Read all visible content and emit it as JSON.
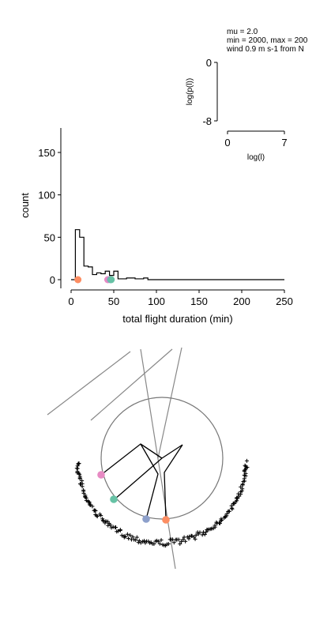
{
  "annotation": {
    "line1": "mu = 2.0",
    "line2": "min = 2000, max = 200",
    "line3": "wind 0.9 m s-1 from N"
  },
  "chart_data": [
    {
      "type": "histogram",
      "xlabel": "total flight duration (min)",
      "ylabel": "count",
      "xlim": [
        0,
        250
      ],
      "ylim": [
        -10,
        180
      ],
      "xticks": [
        0,
        50,
        100,
        150,
        200,
        250
      ],
      "yticks": [
        0,
        50,
        100,
        150
      ],
      "bin_width": 5,
      "bins": [
        {
          "x0": 0,
          "x1": 5,
          "count": 0
        },
        {
          "x0": 5,
          "x1": 10,
          "count": 59
        },
        {
          "x0": 10,
          "x1": 15,
          "count": 50
        },
        {
          "x0": 15,
          "x1": 20,
          "count": 16
        },
        {
          "x0": 20,
          "x1": 25,
          "count": 15
        },
        {
          "x0": 25,
          "x1": 30,
          "count": 6
        },
        {
          "x0": 30,
          "x1": 35,
          "count": 8
        },
        {
          "x0": 35,
          "x1": 40,
          "count": 7
        },
        {
          "x0": 40,
          "x1": 45,
          "count": 10
        },
        {
          "x0": 45,
          "x1": 50,
          "count": 5
        },
        {
          "x0": 50,
          "x1": 55,
          "count": 10
        },
        {
          "x0": 55,
          "x1": 60,
          "count": 1
        },
        {
          "x0": 60,
          "x1": 65,
          "count": 1
        },
        {
          "x0": 65,
          "x1": 70,
          "count": 2
        },
        {
          "x0": 70,
          "x1": 75,
          "count": 2
        },
        {
          "x0": 75,
          "x1": 80,
          "count": 1
        },
        {
          "x0": 80,
          "x1": 85,
          "count": 1
        },
        {
          "x0": 85,
          "x1": 90,
          "count": 2
        },
        {
          "x0": 90,
          "x1": 250,
          "count": 0
        }
      ],
      "markers": [
        {
          "x": 8,
          "y": 0,
          "color": "#fc8d62"
        },
        {
          "x": 43,
          "y": 0,
          "color": "#e78ac3"
        },
        {
          "x": 46,
          "y": 0,
          "color": "#8da0cb"
        },
        {
          "x": 47,
          "y": 0,
          "color": "#66c2a5"
        }
      ]
    },
    {
      "type": "line",
      "xlabel": "log(l)",
      "ylabel": "log(p(l))",
      "xlim": [
        0,
        7
      ],
      "ylim": [
        -8,
        0
      ],
      "xticks": [
        0,
        7
      ],
      "yticks": [
        0,
        -8
      ],
      "series": []
    },
    {
      "type": "scatter",
      "description_units": "arena",
      "circle": {
        "cx": 0,
        "cy": 0,
        "r": 1.0
      },
      "wind_lines": [
        {
          "x1": -0.95,
          "y1": -1.5,
          "x2": -0.3,
          "y2": -0.93
        },
        {
          "x1": -1.85,
          "y1": -1.2,
          "x2": -0.45,
          "y2": -0.4
        },
        {
          "x1": -0.3,
          "y1": -0.93,
          "x2": 0.15,
          "y2": 2.5
        },
        {
          "x1": 0.15,
          "y1": -0.93,
          "x2": -0.05,
          "y2": 0.0
        }
      ],
      "trajectories": [
        {
          "points": [
            [
              0.0,
              0.0
            ],
            [
              -0.3,
              -0.2
            ],
            [
              -0.5,
              0.12
            ],
            [
              -1.0,
              0.42
            ]
          ]
        },
        {
          "points": [
            [
              0.0,
              0.0
            ],
            [
              -0.3,
              -0.2
            ],
            [
              -0.15,
              0.45
            ],
            [
              -0.4,
              0.98
            ]
          ]
        },
        {
          "points": [
            [
              0.0,
              0.0
            ],
            [
              0.2,
              -0.15
            ],
            [
              0.1,
              0.6
            ],
            [
              0.05,
              1.02
            ]
          ]
        },
        {
          "points": [
            [
              0.0,
              0.0
            ],
            [
              -0.95,
              0.62
            ]
          ]
        }
      ],
      "end_markers": [
        {
          "x": -1.02,
          "y": 0.42,
          "color": "#e78ac3"
        },
        {
          "x": -0.8,
          "y": 0.73,
          "color": "#66c2a5"
        },
        {
          "x": -0.23,
          "y": 1.0,
          "color": "#8da0cb"
        },
        {
          "x": 0.08,
          "y": 1.02,
          "color": "#fc8d62"
        }
      ],
      "landing_marker": "+",
      "landing_count": 180
    }
  ]
}
